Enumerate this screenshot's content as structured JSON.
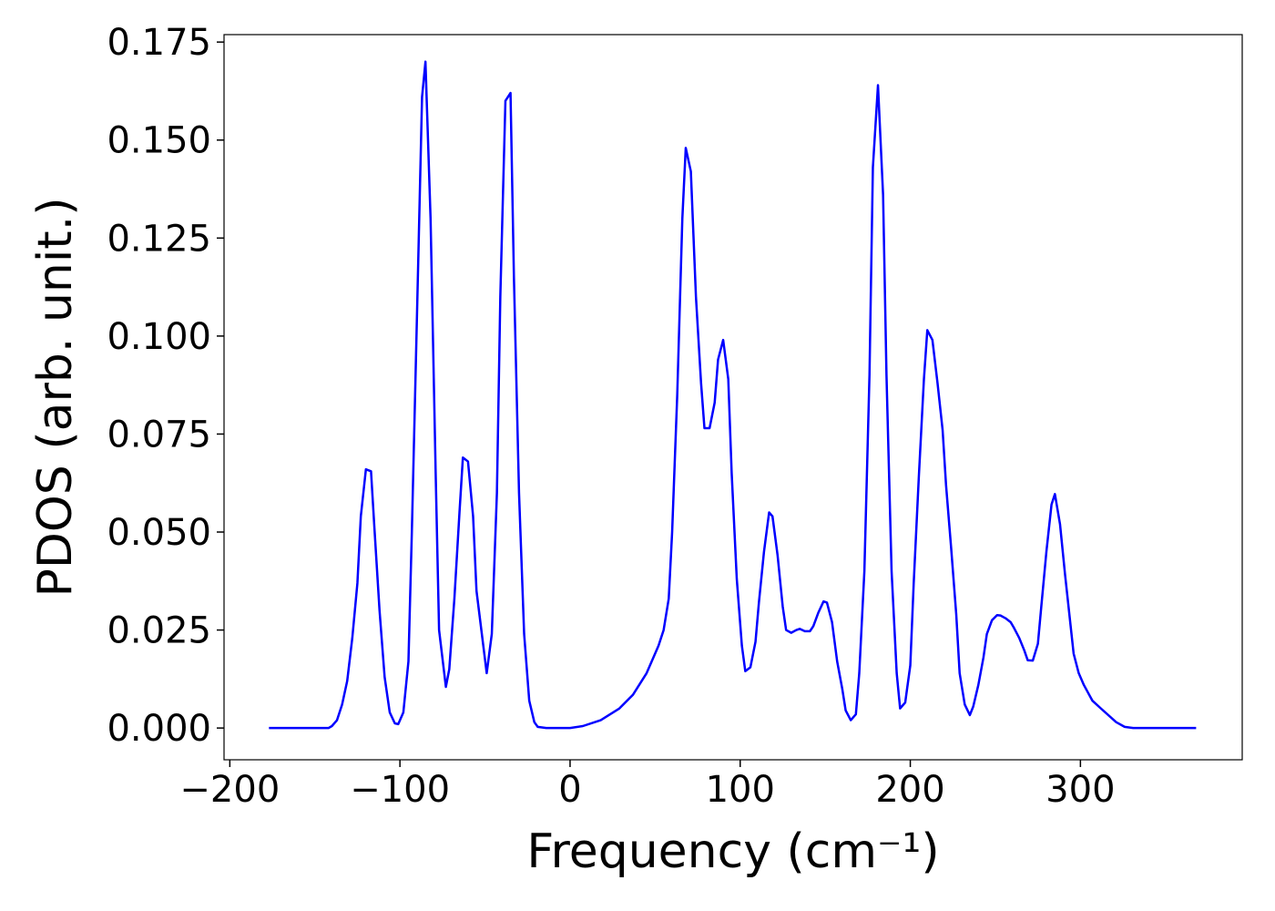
{
  "chart_data": {
    "type": "line",
    "xlabel": "Frequency (cm⁻¹)",
    "ylabel": "PDOS (arb. unit.)",
    "x": [
      -177,
      -142,
      -140,
      -137,
      -134,
      -131,
      -128,
      -125,
      -123,
      -120,
      -117,
      -115,
      -112,
      -109,
      -106,
      -103,
      -101,
      -98,
      -95,
      -93,
      -90,
      -87,
      -85,
      -82,
      -79,
      -77,
      -73,
      -71,
      -68,
      -65,
      -63,
      -60,
      -57,
      -55,
      -51,
      -49,
      -46,
      -43,
      -41,
      -38,
      -35,
      -33,
      -30,
      -27,
      -24,
      -21,
      -19,
      -14,
      0,
      7.5,
      18,
      29,
      37,
      45,
      50,
      52,
      55,
      58,
      60,
      63,
      66,
      68,
      71,
      74,
      77,
      79,
      82,
      85,
      87,
      90,
      93,
      95,
      98,
      101,
      103,
      106,
      109,
      111,
      114,
      117,
      119,
      122,
      125,
      127,
      130,
      133,
      135,
      138,
      141,
      143,
      146,
      149,
      151,
      154,
      157,
      160,
      162,
      165,
      168,
      170,
      173,
      176,
      178,
      181,
      184,
      186,
      189,
      192,
      194,
      197,
      200,
      202,
      205,
      208,
      210,
      213,
      216,
      219,
      221,
      224,
      227,
      229,
      232,
      235,
      237,
      240,
      243,
      245,
      248,
      251,
      253,
      256,
      259,
      261,
      264,
      267,
      269,
      272,
      275,
      277,
      280,
      283,
      285,
      288,
      291,
      294,
      296,
      299,
      302,
      307,
      312,
      321,
      326,
      331,
      368
    ],
    "series": [
      {
        "color": "#0000ff",
        "values": [
          0,
          0,
          0.0005,
          0.002,
          0.006,
          0.012,
          0.023,
          0.037,
          0.054,
          0.066,
          0.0655,
          0.051,
          0.03,
          0.013,
          0.004,
          0.0012,
          0.001,
          0.004,
          0.017,
          0.05,
          0.105,
          0.161,
          0.17,
          0.13,
          0.065,
          0.025,
          0.0105,
          0.015,
          0.033,
          0.055,
          0.069,
          0.068,
          0.054,
          0.035,
          0.021,
          0.014,
          0.024,
          0.06,
          0.11,
          0.16,
          0.162,
          0.115,
          0.06,
          0.024,
          0.007,
          0.0015,
          0.0003,
          0,
          0,
          0.0005,
          0.002,
          0.005,
          0.0085,
          0.014,
          0.019,
          0.021,
          0.025,
          0.033,
          0.05,
          0.085,
          0.13,
          0.148,
          0.142,
          0.11,
          0.088,
          0.0765,
          0.0765,
          0.083,
          0.094,
          0.099,
          0.089,
          0.065,
          0.038,
          0.021,
          0.0145,
          0.0155,
          0.022,
          0.032,
          0.045,
          0.055,
          0.054,
          0.044,
          0.031,
          0.025,
          0.0243,
          0.025,
          0.0253,
          0.0247,
          0.0247,
          0.026,
          0.0295,
          0.0323,
          0.032,
          0.027,
          0.017,
          0.01,
          0.0045,
          0.002,
          0.0035,
          0.014,
          0.04,
          0.09,
          0.143,
          0.164,
          0.136,
          0.09,
          0.04,
          0.014,
          0.005,
          0.0065,
          0.016,
          0.037,
          0.064,
          0.089,
          0.1015,
          0.099,
          0.088,
          0.076,
          0.062,
          0.046,
          0.029,
          0.014,
          0.006,
          0.0033,
          0.0055,
          0.011,
          0.018,
          0.024,
          0.0275,
          0.0288,
          0.0287,
          0.028,
          0.027,
          0.0255,
          0.023,
          0.0198,
          0.0173,
          0.0172,
          0.0215,
          0.031,
          0.045,
          0.057,
          0.0597,
          0.052,
          0.039,
          0.027,
          0.019,
          0.014,
          0.011,
          0.007,
          0.005,
          0.0015,
          0.0003,
          0,
          0
        ]
      }
    ],
    "xlim": [
      -203.4,
      395.1
    ],
    "ylim": [
      -0.0081,
      0.1769
    ],
    "xticks": [
      {
        "value": -200,
        "label": "−200"
      },
      {
        "value": -100,
        "label": "−100"
      },
      0,
      100,
      200,
      300
    ],
    "yticks": [
      {
        "value": 0,
        "label": "0.000"
      },
      {
        "value": 0.025,
        "label": "0.025"
      },
      {
        "value": 0.05,
        "label": "0.050"
      },
      {
        "value": 0.075,
        "label": "0.075"
      },
      {
        "value": 0.1,
        "label": "0.100"
      },
      {
        "value": 0.125,
        "label": "0.125"
      },
      {
        "value": 0.15,
        "label": "0.150"
      },
      {
        "value": 0.175,
        "label": "0.175"
      }
    ]
  }
}
